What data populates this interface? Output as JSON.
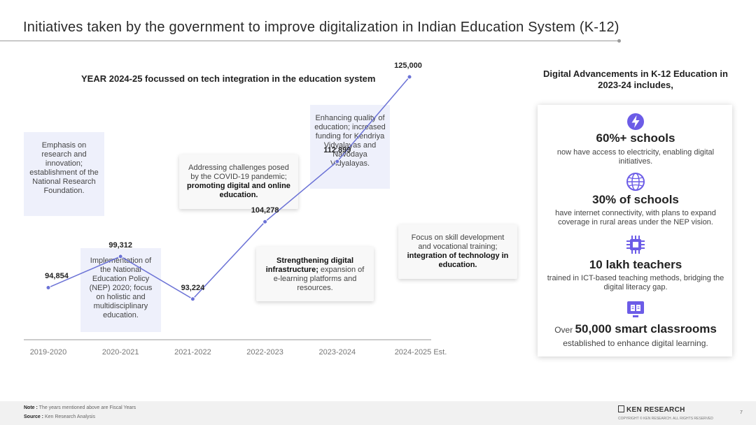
{
  "page": {
    "title": "Initiatives taken by the government to improve digitalization in Indian Education System (K-12)"
  },
  "chart": {
    "heading": "YEAR 2024-25 focussed on tech integration in the education system"
  },
  "chart_data": {
    "type": "line",
    "title": "YEAR 2024-25 focussed on tech integration in the education system",
    "categories": [
      "2019-2020",
      "2020-2021",
      "2021-2022",
      "2022-2023",
      "2023-2024",
      "2024-2025 Est."
    ],
    "values": [
      94854,
      99312,
      93224,
      104278,
      112899,
      125000
    ],
    "value_labels": [
      "94,854",
      "99,312",
      "93,224",
      "104,278",
      "112,899",
      "125,000"
    ],
    "xlabel": "",
    "ylabel": "",
    "ylim": [
      80000,
      130000
    ],
    "color": "#6b72d6"
  },
  "annotations": {
    "research": "Emphasis on research and innovation; establishment of the National Research Foundation.",
    "nep": "Implementation of the National Education Policy (NEP) 2020; focus on holistic and multidisciplinary education.",
    "covid_pre": "Addressing challenges posed by the COVID-19 pandemic; ",
    "covid_bold": "promoting digital and online education.",
    "infra_bold": "Strengthening digital infrastructure;",
    "infra_rest": " expansion of e-learning platforms and resources.",
    "quality": "Enhancing quality of education; increased funding for Kendriya Vidyalayas and Navodaya Vidyalayas.",
    "skill_pre": "Focus on skill development and vocational training; ",
    "skill_bold": "integration of technology in education."
  },
  "right": {
    "heading": "Digital Advancements in K-12 Education in 2023-24 includes,",
    "stats": [
      {
        "icon": "lightning-icon",
        "big": "60%+ schools",
        "desc": "now have access to electricity, enabling digital initiatives."
      },
      {
        "icon": "globe-icon",
        "big": "30% of schools",
        "desc": "have internet connectivity, with plans to expand coverage in rural areas under the NEP vision."
      },
      {
        "icon": "chip-icon",
        "big": "10 lakh teachers",
        "desc": "trained in ICT-based teaching methods, bridging the digital literacy gap."
      },
      {
        "icon": "book-icon",
        "prefix": "Over ",
        "big": "50,000 smart classrooms",
        "desc": "established to enhance digital learning."
      }
    ]
  },
  "footer": {
    "note_label": "Note :",
    "note_text": " The years mentioned above are Fiscal Years",
    "source_label": "Source :",
    "source_text": " Ken Research Analysis",
    "brand": "KEN RESEARCH",
    "copyright": "COPYRIGHT © KEN RESEARCH. ALL RIGHTS RESERVED",
    "page_number": "7"
  },
  "colors": {
    "accent": "#6b72d6",
    "lavender": "#eef0fb",
    "icon": "#6c5ce7"
  }
}
